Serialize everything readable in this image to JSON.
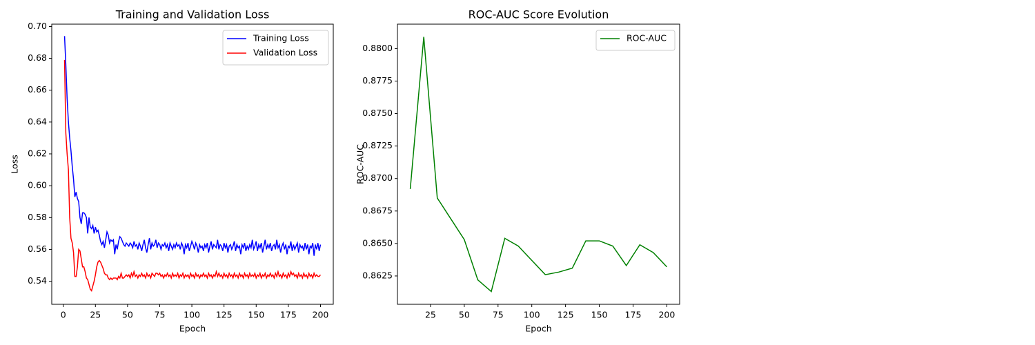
{
  "chart_data": [
    {
      "type": "line",
      "title": "Training and Validation Loss",
      "xlabel": "Epoch",
      "ylabel": "Loss",
      "legend": "upper right",
      "x": [
        1,
        2,
        3,
        4,
        5,
        6,
        7,
        8,
        9,
        10,
        11,
        12,
        13,
        14,
        15,
        16,
        17,
        18,
        19,
        20,
        21,
        22,
        23,
        24,
        25,
        26,
        27,
        28,
        29,
        30,
        31,
        32,
        33,
        34,
        35,
        36,
        37,
        38,
        39,
        40,
        41,
        42,
        43,
        44,
        45,
        46,
        47,
        48,
        49,
        50,
        51,
        52,
        53,
        54,
        55,
        56,
        57,
        58,
        59,
        60,
        61,
        62,
        63,
        64,
        65,
        66,
        67,
        68,
        69,
        70,
        71,
        72,
        73,
        74,
        75,
        76,
        77,
        78,
        79,
        80,
        81,
        82,
        83,
        84,
        85,
        86,
        87,
        88,
        89,
        90,
        91,
        92,
        93,
        94,
        95,
        96,
        97,
        98,
        99,
        100,
        101,
        102,
        103,
        104,
        105,
        106,
        107,
        108,
        109,
        110,
        111,
        112,
        113,
        114,
        115,
        116,
        117,
        118,
        119,
        120,
        121,
        122,
        123,
        124,
        125,
        126,
        127,
        128,
        129,
        130,
        131,
        132,
        133,
        134,
        135,
        136,
        137,
        138,
        139,
        140,
        141,
        142,
        143,
        144,
        145,
        146,
        147,
        148,
        149,
        150,
        151,
        152,
        153,
        154,
        155,
        156,
        157,
        158,
        159,
        160,
        161,
        162,
        163,
        164,
        165,
        166,
        167,
        168,
        169,
        170,
        171,
        172,
        173,
        174,
        175,
        176,
        177,
        178,
        179,
        180,
        181,
        182,
        183,
        184,
        185,
        186,
        187,
        188,
        189,
        190,
        191,
        192,
        193,
        194,
        195,
        196,
        197,
        198,
        199,
        200
      ],
      "series": [
        {
          "name": "Training Loss",
          "color": "#0000ff",
          "values": [
            0.694,
            0.676,
            0.655,
            0.64,
            0.63,
            0.622,
            0.612,
            0.604,
            0.593,
            0.596,
            0.592,
            0.59,
            0.58,
            0.576,
            0.583,
            0.583,
            0.582,
            0.58,
            0.57,
            0.58,
            0.574,
            0.573,
            0.575,
            0.57,
            0.574,
            0.571,
            0.572,
            0.569,
            0.565,
            0.563,
            0.565,
            0.561,
            0.566,
            0.571,
            0.569,
            0.564,
            0.566,
            0.565,
            0.566,
            0.557,
            0.563,
            0.56,
            0.565,
            0.568,
            0.567,
            0.565,
            0.563,
            0.562,
            0.564,
            0.563,
            0.562,
            0.564,
            0.563,
            0.561,
            0.565,
            0.562,
            0.563,
            0.56,
            0.564,
            0.562,
            0.559,
            0.563,
            0.566,
            0.561,
            0.558,
            0.563,
            0.567,
            0.56,
            0.564,
            0.562,
            0.563,
            0.566,
            0.561,
            0.564,
            0.563,
            0.56,
            0.563,
            0.562,
            0.564,
            0.561,
            0.563,
            0.559,
            0.564,
            0.562,
            0.56,
            0.563,
            0.561,
            0.564,
            0.562,
            0.563,
            0.56,
            0.564,
            0.562,
            0.557,
            0.563,
            0.561,
            0.564,
            0.559,
            0.562,
            0.565,
            0.563,
            0.56,
            0.564,
            0.562,
            0.558,
            0.563,
            0.561,
            0.562,
            0.559,
            0.563,
            0.561,
            0.564,
            0.558,
            0.562,
            0.565,
            0.56,
            0.563,
            0.562,
            0.561,
            0.566,
            0.56,
            0.563,
            0.562,
            0.559,
            0.564,
            0.561,
            0.563,
            0.558,
            0.562,
            0.563,
            0.56,
            0.562,
            0.565,
            0.559,
            0.563,
            0.561,
            0.562,
            0.557,
            0.563,
            0.561,
            0.564,
            0.559,
            0.562,
            0.56,
            0.563,
            0.561,
            0.566,
            0.56,
            0.562,
            0.565,
            0.559,
            0.563,
            0.561,
            0.564,
            0.558,
            0.562,
            0.566,
            0.56,
            0.563,
            0.561,
            0.564,
            0.559,
            0.562,
            0.563,
            0.56,
            0.566,
            0.561,
            0.563,
            0.558,
            0.562,
            0.564,
            0.56,
            0.563,
            0.557,
            0.562,
            0.561,
            0.565,
            0.559,
            0.563,
            0.56,
            0.562,
            0.564,
            0.558,
            0.563,
            0.561,
            0.562,
            0.559,
            0.564,
            0.56,
            0.563,
            0.557,
            0.562,
            0.561,
            0.564,
            0.556,
            0.563,
            0.56,
            0.564,
            0.559,
            0.563
          ]
        },
        {
          "name": "Validation Loss",
          "color": "#ff0000",
          "values": [
            0.679,
            0.633,
            0.62,
            0.61,
            0.58,
            0.567,
            0.564,
            0.558,
            0.543,
            0.543,
            0.549,
            0.56,
            0.559,
            0.554,
            0.549,
            0.549,
            0.546,
            0.542,
            0.541,
            0.538,
            0.535,
            0.534,
            0.537,
            0.54,
            0.544,
            0.549,
            0.552,
            0.553,
            0.552,
            0.55,
            0.548,
            0.545,
            0.544,
            0.544,
            0.542,
            0.541,
            0.542,
            0.541,
            0.542,
            0.542,
            0.542,
            0.541,
            0.543,
            0.542,
            0.545,
            0.542,
            0.542,
            0.543,
            0.544,
            0.543,
            0.544,
            0.542,
            0.545,
            0.543,
            0.546,
            0.543,
            0.544,
            0.542,
            0.544,
            0.543,
            0.545,
            0.543,
            0.544,
            0.542,
            0.545,
            0.543,
            0.544,
            0.542,
            0.545,
            0.544,
            0.543,
            0.545,
            0.545,
            0.544,
            0.545,
            0.543,
            0.544,
            0.542,
            0.544,
            0.543,
            0.545,
            0.543,
            0.544,
            0.542,
            0.545,
            0.543,
            0.544,
            0.543,
            0.545,
            0.542,
            0.544,
            0.543,
            0.545,
            0.542,
            0.544,
            0.543,
            0.544,
            0.542,
            0.545,
            0.543,
            0.544,
            0.542,
            0.545,
            0.543,
            0.544,
            0.542,
            0.544,
            0.543,
            0.545,
            0.543,
            0.544,
            0.542,
            0.545,
            0.543,
            0.544,
            0.542,
            0.544,
            0.543,
            0.546,
            0.543,
            0.545,
            0.543,
            0.544,
            0.542,
            0.545,
            0.543,
            0.544,
            0.542,
            0.545,
            0.543,
            0.544,
            0.542,
            0.545,
            0.543,
            0.544,
            0.542,
            0.545,
            0.543,
            0.544,
            0.542,
            0.545,
            0.543,
            0.544,
            0.542,
            0.545,
            0.543,
            0.544,
            0.543,
            0.545,
            0.542,
            0.544,
            0.543,
            0.545,
            0.542,
            0.544,
            0.543,
            0.545,
            0.542,
            0.544,
            0.543,
            0.545,
            0.543,
            0.544,
            0.542,
            0.545,
            0.543,
            0.546,
            0.543,
            0.544,
            0.542,
            0.545,
            0.543,
            0.544,
            0.542,
            0.545,
            0.543,
            0.546,
            0.544,
            0.545,
            0.543,
            0.544,
            0.542,
            0.545,
            0.543,
            0.544,
            0.542,
            0.545,
            0.543,
            0.544,
            0.542,
            0.545,
            0.543,
            0.544,
            0.542,
            0.545,
            0.543,
            0.544,
            0.543,
            0.543,
            0.544
          ]
        }
      ],
      "xlim": [
        -8.95,
        209.95
      ],
      "xticks": [
        0,
        25,
        50,
        75,
        100,
        125,
        150,
        175,
        200
      ],
      "ylim": [
        0.5255,
        0.7015
      ],
      "yticks": [
        0.54,
        0.56,
        0.58,
        {
          "value": 0.6,
          "label": "0.60"
        },
        0.62,
        0.64,
        0.66,
        0.68,
        {
          "value": 0.7,
          "label": "0.70"
        }
      ]
    },
    {
      "type": "line",
      "title": "ROC-AUC Score Evolution",
      "xlabel": "Epoch",
      "ylabel": "ROC-AUC",
      "legend": "upper right",
      "x": [
        10,
        20,
        30,
        40,
        50,
        60,
        70,
        80,
        90,
        100,
        110,
        120,
        130,
        140,
        150,
        160,
        170,
        180,
        190,
        200
      ],
      "series": [
        {
          "name": "ROC-AUC",
          "color": "#008000",
          "values": [
            0.8692,
            0.8809,
            0.8685,
            0.8669,
            0.8653,
            0.8622,
            0.8613,
            0.8654,
            0.8648,
            0.8637,
            0.8626,
            0.8628,
            0.8631,
            0.8652,
            0.8652,
            0.8648,
            0.8633,
            0.8649,
            0.8643,
            0.8632
          ]
        }
      ],
      "xlim": [
        0.5,
        209.5
      ],
      "xticks": [
        25,
        50,
        75,
        100,
        125,
        150,
        175,
        200
      ],
      "ylim": [
        0.86032,
        0.88188
      ],
      "yticks": [
        0.8625,
        {
          "value": 0.865,
          "label": "0.8650"
        },
        0.8675,
        {
          "value": 0.87,
          "label": "0.8700"
        },
        0.8725,
        {
          "value": 0.875,
          "label": "0.8750"
        },
        0.8775,
        {
          "value": 0.88,
          "label": "0.8800"
        }
      ]
    }
  ]
}
